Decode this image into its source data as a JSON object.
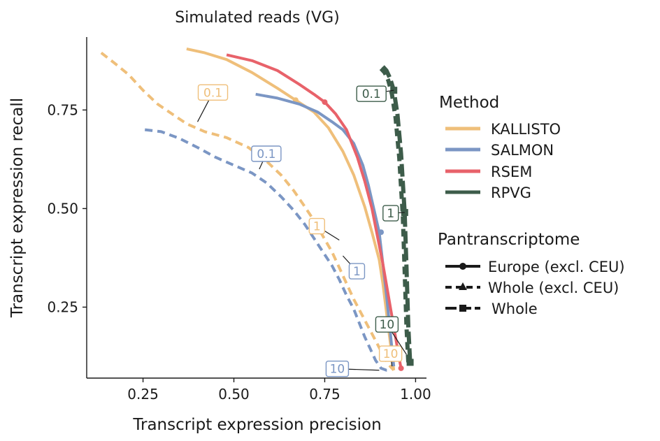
{
  "chart_data": {
    "type": "line",
    "title": "Simulated reads (VG)",
    "xlabel": "Transcript expression precision",
    "ylabel": "Transcript expression recall",
    "xlim": [
      0.095,
      1.03
    ],
    "ylim": [
      0.07,
      0.935
    ],
    "xticks": [
      0.25,
      0.5,
      0.75,
      1.0
    ],
    "xtick_labels": [
      "0.25",
      "0.50",
      "0.75",
      "1.00"
    ],
    "yticks": [
      0.25,
      0.5,
      0.75
    ],
    "ytick_labels": [
      "0.25",
      "0.50",
      "0.75"
    ],
    "legend_method": {
      "title": "Method",
      "position": "right",
      "entries": [
        {
          "name": "KALLISTO",
          "color": "#efbf7a"
        },
        {
          "name": "SALMON",
          "color": "#7b96c4"
        },
        {
          "name": "RSEM",
          "color": "#e8626a"
        },
        {
          "name": "RPVG",
          "color": "#3d5c4a"
        }
      ]
    },
    "legend_pantranscriptome": {
      "title": "Pantranscriptome",
      "entries": [
        {
          "name": "Europe (excl. CEU)",
          "dash": "solid",
          "marker": "circle"
        },
        {
          "name": "Whole (excl. CEU)",
          "dash": "dashed",
          "marker": "triangle"
        },
        {
          "name": "Whole",
          "dash": "longdash",
          "marker": "square"
        }
      ]
    },
    "series": [
      {
        "name": "KALLISTO",
        "pantranscriptome": "Europe (excl. CEU)",
        "color": "#efbf7a",
        "dash": "solid",
        "x": [
          0.37,
          0.42,
          0.48,
          0.55,
          0.62,
          0.67,
          0.72,
          0.76,
          0.8,
          0.83,
          0.86,
          0.88,
          0.9,
          0.91,
          0.925,
          0.94
        ],
        "y": [
          0.905,
          0.895,
          0.878,
          0.845,
          0.805,
          0.775,
          0.745,
          0.705,
          0.645,
          0.585,
          0.505,
          0.44,
          0.37,
          0.31,
          0.2,
          0.09
        ],
        "markers": [
          {
            "x": 0.67,
            "y": 0.775
          }
        ]
      },
      {
        "name": "SALMON",
        "pantranscriptome": "Europe (excl. CEU)",
        "color": "#7b96c4",
        "dash": "solid",
        "x": [
          0.56,
          0.62,
          0.68,
          0.73,
          0.77,
          0.8,
          0.83,
          0.855,
          0.87,
          0.885,
          0.9,
          0.91,
          0.92,
          0.93,
          0.94
        ],
        "y": [
          0.79,
          0.78,
          0.765,
          0.745,
          0.72,
          0.7,
          0.665,
          0.61,
          0.56,
          0.5,
          0.44,
          0.36,
          0.28,
          0.19,
          0.1
        ],
        "markers": [
          {
            "x": 0.905,
            "y": 0.44
          }
        ]
      },
      {
        "name": "RSEM",
        "pantranscriptome": "Europe (excl. CEU)",
        "color": "#e8626a",
        "dash": "solid",
        "x": [
          0.48,
          0.55,
          0.62,
          0.68,
          0.72,
          0.75,
          0.78,
          0.81,
          0.84,
          0.86,
          0.88,
          0.895,
          0.91,
          0.925,
          0.94,
          0.955,
          0.96
        ],
        "y": [
          0.89,
          0.875,
          0.85,
          0.815,
          0.79,
          0.77,
          0.74,
          0.7,
          0.63,
          0.57,
          0.5,
          0.43,
          0.36,
          0.28,
          0.2,
          0.12,
          0.095
        ],
        "markers": [
          {
            "x": 0.75,
            "y": 0.77
          },
          {
            "x": 0.96,
            "y": 0.095
          }
        ]
      },
      {
        "name": "KALLISTO",
        "pantranscriptome": "Whole (excl. CEU)",
        "color": "#efbf7a",
        "dash": "dashed",
        "x": [
          0.135,
          0.17,
          0.21,
          0.25,
          0.29,
          0.33,
          0.37,
          0.42,
          0.48,
          0.54,
          0.59,
          0.63,
          0.665,
          0.695,
          0.72,
          0.745,
          0.77,
          0.79,
          0.81,
          0.83,
          0.85,
          0.87,
          0.89,
          0.91,
          0.925,
          0.94
        ],
        "y": [
          0.895,
          0.87,
          0.84,
          0.8,
          0.765,
          0.74,
          0.715,
          0.695,
          0.68,
          0.655,
          0.62,
          0.585,
          0.545,
          0.505,
          0.47,
          0.43,
          0.39,
          0.35,
          0.31,
          0.27,
          0.235,
          0.2,
          0.165,
          0.13,
          0.105,
          0.09
        ],
        "markers": []
      },
      {
        "name": "SALMON",
        "pantranscriptome": "Whole (excl. CEU)",
        "color": "#7b96c4",
        "dash": "dashed",
        "x": [
          0.255,
          0.3,
          0.35,
          0.4,
          0.45,
          0.5,
          0.55,
          0.59,
          0.63,
          0.665,
          0.695,
          0.72,
          0.745,
          0.77,
          0.79,
          0.81,
          0.83,
          0.845,
          0.86,
          0.875,
          0.89,
          0.905,
          0.92,
          0.93
        ],
        "y": [
          0.7,
          0.695,
          0.678,
          0.655,
          0.63,
          0.61,
          0.59,
          0.565,
          0.53,
          0.495,
          0.46,
          0.425,
          0.39,
          0.355,
          0.32,
          0.28,
          0.245,
          0.21,
          0.175,
          0.145,
          0.115,
          0.095,
          0.09,
          0.09
        ],
        "markers": []
      },
      {
        "name": "RPVG",
        "pantranscriptome": "Whole",
        "color": "#3d5c4a",
        "dash": "longdash",
        "x": [
          0.91,
          0.92,
          0.93,
          0.94,
          0.95,
          0.96,
          0.97,
          0.975,
          0.98,
          0.985
        ],
        "y": [
          0.86,
          0.85,
          0.83,
          0.8,
          0.74,
          0.64,
          0.49,
          0.35,
          0.2,
          0.11
        ],
        "markers": [
          {
            "x": 0.94,
            "y": 0.8
          },
          {
            "x": 0.97,
            "y": 0.49
          },
          {
            "x": 0.985,
            "y": 0.11
          }
        ]
      },
      {
        "name": "RPVG",
        "pantranscriptome": "Whole (excl. CEU)",
        "color": "#3d5c4a",
        "dash": "dashed",
        "x": [
          0.905,
          0.915,
          0.925,
          0.935,
          0.945,
          0.955,
          0.965,
          0.97,
          0.975,
          0.98
        ],
        "y": [
          0.855,
          0.845,
          0.825,
          0.79,
          0.73,
          0.63,
          0.48,
          0.34,
          0.2,
          0.11
        ],
        "markers": []
      }
    ],
    "annotations": [
      {
        "label": "0.1",
        "color": "#efbf7a",
        "x": 0.4,
        "y": 0.72
      },
      {
        "label": "0.1",
        "color": "#7b96c4",
        "x": 0.57,
        "y": 0.6
      },
      {
        "label": "1",
        "color": "#efbf7a",
        "x": 0.79,
        "y": 0.42
      },
      {
        "label": "1",
        "color": "#7b96c4",
        "x": 0.8,
        "y": 0.38
      },
      {
        "label": "10",
        "color": "#efbf7a",
        "x": 0.935,
        "y": 0.1
      },
      {
        "label": "10",
        "color": "#7b96c4",
        "x": 0.9,
        "y": 0.09
      },
      {
        "label": "0.1",
        "color": "#3d5c4a",
        "x": 0.94,
        "y": 0.8
      },
      {
        "label": "1",
        "color": "#3d5c4a",
        "x": 0.97,
        "y": 0.49
      },
      {
        "label": "10",
        "color": "#3d5c4a",
        "x": 0.975,
        "y": 0.13
      }
    ]
  }
}
